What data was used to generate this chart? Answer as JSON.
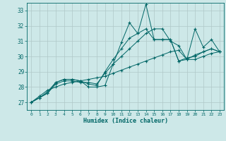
{
  "title": "",
  "xlabel": "Humidex (Indice chaleur)",
  "ylabel": "",
  "x": [
    0,
    1,
    2,
    3,
    4,
    5,
    6,
    7,
    8,
    9,
    10,
    11,
    12,
    13,
    14,
    15,
    16,
    17,
    18,
    19,
    20,
    21,
    22,
    23
  ],
  "line1": [
    27.0,
    27.3,
    27.7,
    28.3,
    28.5,
    28.5,
    28.4,
    28.0,
    28.0,
    28.1,
    29.5,
    30.9,
    32.2,
    31.5,
    33.4,
    31.1,
    31.1,
    31.1,
    29.7,
    29.8,
    31.8,
    30.6,
    31.1,
    30.3
  ],
  "line2": [
    27.0,
    27.3,
    27.6,
    28.3,
    28.5,
    28.5,
    28.4,
    28.2,
    28.1,
    29.0,
    29.8,
    30.5,
    31.2,
    31.5,
    31.8,
    31.1,
    31.1,
    31.1,
    29.7,
    29.9,
    30.0,
    30.3,
    30.5,
    30.3
  ],
  "line3": [
    27.0,
    27.3,
    27.6,
    28.2,
    28.4,
    28.4,
    28.3,
    28.3,
    28.2,
    28.9,
    29.5,
    30.0,
    30.5,
    31.0,
    31.5,
    31.8,
    31.8,
    31.0,
    30.7,
    29.8,
    30.1,
    30.3,
    30.5,
    30.3
  ],
  "line4": [
    27.0,
    27.4,
    27.8,
    28.0,
    28.2,
    28.3,
    28.4,
    28.5,
    28.6,
    28.7,
    28.9,
    29.1,
    29.3,
    29.5,
    29.7,
    29.9,
    30.1,
    30.3,
    30.4,
    29.8,
    29.8,
    30.0,
    30.2,
    30.3
  ],
  "line_color": "#006666",
  "bg_color": "#cde8e8",
  "grid_color": "#b0c8c8",
  "ylim": [
    26.5,
    33.5
  ],
  "xlim": [
    -0.5,
    23.5
  ],
  "yticks": [
    27,
    28,
    29,
    30,
    31,
    32,
    33
  ],
  "xticks": [
    0,
    1,
    2,
    3,
    4,
    5,
    6,
    7,
    8,
    9,
    10,
    11,
    12,
    13,
    14,
    15,
    16,
    17,
    18,
    19,
    20,
    21,
    22,
    23
  ]
}
